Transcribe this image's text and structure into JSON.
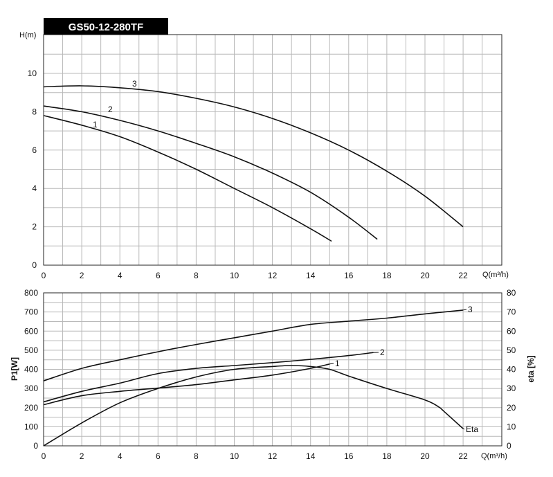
{
  "chart_data": [
    {
      "type": "line",
      "title": "GS50-12-280TF",
      "xlabel": "Q(m³/h)",
      "ylabel": "H(m)",
      "xlim": [
        0,
        24
      ],
      "ylim": [
        0,
        12
      ],
      "xticks": [
        "0",
        "2",
        "4",
        "6",
        "8",
        "10",
        "12",
        "14",
        "16",
        "18",
        "20",
        "22"
      ],
      "yticks": [
        "0",
        "2",
        "4",
        "6",
        "8",
        "10"
      ],
      "grid": true,
      "series": [
        {
          "name": "1",
          "x": [
            0,
            2,
            4,
            6,
            8,
            10,
            12,
            14,
            15.1
          ],
          "y": [
            7.8,
            7.3,
            6.7,
            5.9,
            5.0,
            4.0,
            3.0,
            1.9,
            1.25
          ]
        },
        {
          "name": "2",
          "x": [
            0,
            2,
            4,
            6,
            8,
            10,
            12,
            14,
            16,
            17.5
          ],
          "y": [
            8.3,
            8.0,
            7.55,
            7.0,
            6.35,
            5.65,
            4.8,
            3.8,
            2.5,
            1.35
          ]
        },
        {
          "name": "3",
          "x": [
            0,
            2,
            4,
            6,
            8,
            10,
            12,
            14,
            16,
            18,
            20,
            22
          ],
          "y": [
            9.3,
            9.35,
            9.25,
            9.05,
            8.7,
            8.25,
            7.65,
            6.9,
            6.0,
            4.9,
            3.6,
            2.0
          ]
        }
      ]
    },
    {
      "type": "line",
      "xlabel": "Q(m³/h)",
      "ylabel": "P1[W]",
      "y2label": "eta [%]",
      "xlim": [
        0,
        24
      ],
      "ylim": [
        0,
        800
      ],
      "y2lim": [
        0,
        80
      ],
      "xticks": [
        "0",
        "2",
        "4",
        "6",
        "8",
        "10",
        "12",
        "14",
        "16",
        "18",
        "20",
        "22"
      ],
      "yticks": [
        "0",
        "100",
        "200",
        "300",
        "400",
        "500",
        "600",
        "700",
        "800"
      ],
      "y2ticks": [
        "0",
        "10",
        "20",
        "30",
        "40",
        "50",
        "60",
        "70",
        "80"
      ],
      "grid": true,
      "series": [
        {
          "name": "1",
          "axis": "left",
          "x": [
            0,
            2,
            4,
            6,
            8,
            10,
            12,
            14,
            15
          ],
          "y": [
            215,
            262,
            285,
            302,
            320,
            345,
            370,
            405,
            428
          ]
        },
        {
          "name": "2",
          "axis": "left",
          "x": [
            0,
            2,
            4,
            6,
            8,
            10,
            12,
            14,
            16,
            17.3
          ],
          "y": [
            230,
            285,
            328,
            378,
            405,
            420,
            435,
            452,
            472,
            488
          ]
        },
        {
          "name": "3",
          "axis": "left",
          "x": [
            0,
            2,
            4,
            6,
            8,
            10,
            12,
            14,
            16,
            18,
            20,
            22
          ],
          "y": [
            340,
            405,
            450,
            492,
            530,
            565,
            600,
            635,
            652,
            668,
            690,
            710
          ]
        },
        {
          "name": "Eta",
          "axis": "right",
          "x": [
            0,
            2,
            4,
            6,
            8,
            10,
            12,
            13,
            14,
            15,
            16,
            18,
            20,
            20.7,
            21,
            22
          ],
          "y": [
            0,
            12,
            22.5,
            30,
            36,
            40,
            41.5,
            42,
            41.5,
            40,
            36.5,
            30,
            24,
            20.5,
            18,
            9
          ]
        }
      ]
    }
  ]
}
